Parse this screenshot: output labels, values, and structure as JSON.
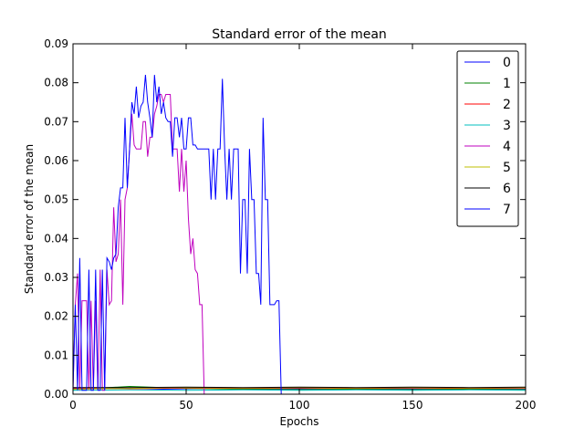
{
  "chart_data": {
    "type": "line",
    "title": "Standard error of the mean",
    "xlabel": "Epochs",
    "ylabel": "Standard error of the mean",
    "xlim": [
      0,
      200
    ],
    "ylim": [
      0,
      0.09
    ],
    "xticks": [
      "0",
      "50",
      "100",
      "150",
      "200"
    ],
    "yticks": [
      "0.00",
      "0.01",
      "0.02",
      "0.03",
      "0.04",
      "0.05",
      "0.06",
      "0.07",
      "0.08",
      "0.09"
    ],
    "grid": false,
    "legend_position": "top-right",
    "series": [
      {
        "name": "0",
        "color": "#0000ff",
        "points": [
          [
            0,
            0.0014
          ],
          [
            20,
            0.0016
          ],
          [
            40,
            0.0013
          ],
          [
            60,
            0.0015
          ],
          [
            80,
            0.0013
          ],
          [
            100,
            0.0014
          ],
          [
            120,
            0.0012
          ],
          [
            140,
            0.0014
          ],
          [
            160,
            0.0013
          ],
          [
            180,
            0.0014
          ],
          [
            200,
            0.0013
          ]
        ]
      },
      {
        "name": "1",
        "color": "#008000",
        "points": [
          [
            0,
            0.0012
          ],
          [
            25,
            0.002
          ],
          [
            50,
            0.0015
          ],
          [
            75,
            0.0013
          ],
          [
            100,
            0.0012
          ],
          [
            125,
            0.0013
          ],
          [
            150,
            0.0012
          ],
          [
            175,
            0.0013
          ],
          [
            200,
            0.0012
          ]
        ]
      },
      {
        "name": "2",
        "color": "#ff0000",
        "points": [
          [
            0,
            0.0016
          ],
          [
            25,
            0.0014
          ],
          [
            50,
            0.0016
          ],
          [
            75,
            0.0015
          ],
          [
            100,
            0.0016
          ],
          [
            125,
            0.0015
          ],
          [
            150,
            0.0016
          ],
          [
            175,
            0.0015
          ],
          [
            200,
            0.0016
          ]
        ]
      },
      {
        "name": "3",
        "color": "#00bfbf",
        "points": [
          [
            0,
            0.001
          ],
          [
            25,
            0.0011
          ],
          [
            50,
            0.001
          ],
          [
            75,
            0.0011
          ],
          [
            100,
            0.001
          ],
          [
            125,
            0.0011
          ],
          [
            150,
            0.001
          ],
          [
            175,
            0.0011
          ],
          [
            200,
            0.001
          ]
        ]
      },
      {
        "name": "4",
        "color": "#bf00bf",
        "points": [
          [
            0,
            0.001
          ],
          [
            1,
            0.023
          ],
          [
            2,
            0.031
          ],
          [
            3,
            0.001
          ],
          [
            4,
            0.024
          ],
          [
            6,
            0.024
          ],
          [
            7,
            0.001
          ],
          [
            8,
            0.024
          ],
          [
            9,
            0.001
          ],
          [
            10,
            0.024
          ],
          [
            11,
            0.001
          ],
          [
            12,
            0.032
          ],
          [
            13,
            0.001
          ],
          [
            14,
            0.001
          ],
          [
            15,
            0.032
          ],
          [
            16,
            0.023
          ],
          [
            17,
            0.024
          ],
          [
            18,
            0.048
          ],
          [
            19,
            0.034
          ],
          [
            20,
            0.036
          ],
          [
            21,
            0.05
          ],
          [
            22,
            0.023
          ],
          [
            23,
            0.05
          ],
          [
            24,
            0.053
          ],
          [
            25,
            0.063
          ],
          [
            26,
            0.072
          ],
          [
            27,
            0.064
          ],
          [
            28,
            0.063
          ],
          [
            30,
            0.063
          ],
          [
            31,
            0.07
          ],
          [
            32,
            0.07
          ],
          [
            33,
            0.061
          ],
          [
            34,
            0.066
          ],
          [
            35,
            0.066
          ],
          [
            36,
            0.072
          ],
          [
            37,
            0.074
          ],
          [
            38,
            0.077
          ],
          [
            39,
            0.077
          ],
          [
            40,
            0.075
          ],
          [
            41,
            0.077
          ],
          [
            43,
            0.077
          ],
          [
            44,
            0.063
          ],
          [
            45,
            0.063
          ],
          [
            46,
            0.063
          ],
          [
            47,
            0.052
          ],
          [
            48,
            0.063
          ],
          [
            49,
            0.052
          ],
          [
            50,
            0.06
          ],
          [
            51,
            0.045
          ],
          [
            52,
            0.036
          ],
          [
            53,
            0.04
          ],
          [
            54,
            0.032
          ],
          [
            55,
            0.031
          ],
          [
            56,
            0.023
          ],
          [
            57,
            0.023
          ],
          [
            58,
            0.0
          ]
        ]
      },
      {
        "name": "5",
        "color": "#bfbf00",
        "points": [
          [
            0,
            0.0013
          ],
          [
            25,
            0.0015
          ],
          [
            50,
            0.0017
          ],
          [
            75,
            0.0016
          ],
          [
            100,
            0.0017
          ],
          [
            125,
            0.0016
          ],
          [
            150,
            0.0017
          ],
          [
            175,
            0.0016
          ],
          [
            200,
            0.0017
          ]
        ]
      },
      {
        "name": "6",
        "color": "#000000",
        "points": [
          [
            0,
            0.0017
          ],
          [
            25,
            0.0017
          ],
          [
            50,
            0.0018
          ],
          [
            75,
            0.0017
          ],
          [
            100,
            0.0018
          ],
          [
            125,
            0.0017
          ],
          [
            150,
            0.0018
          ],
          [
            175,
            0.0017
          ],
          [
            200,
            0.0018
          ]
        ]
      },
      {
        "name": "7",
        "color": "#0000ff",
        "points": [
          [
            0,
            0.001
          ],
          [
            1,
            0.023
          ],
          [
            2,
            0.001
          ],
          [
            3,
            0.035
          ],
          [
            4,
            0.001
          ],
          [
            6,
            0.001
          ],
          [
            7,
            0.032
          ],
          [
            8,
            0.001
          ],
          [
            9,
            0.001
          ],
          [
            10,
            0.032
          ],
          [
            11,
            0.001
          ],
          [
            12,
            0.001
          ],
          [
            13,
            0.032
          ],
          [
            14,
            0.001
          ],
          [
            15,
            0.035
          ],
          [
            16,
            0.034
          ],
          [
            17,
            0.032
          ],
          [
            18,
            0.035
          ],
          [
            19,
            0.036
          ],
          [
            20,
            0.048
          ],
          [
            21,
            0.053
          ],
          [
            22,
            0.053
          ],
          [
            23,
            0.071
          ],
          [
            24,
            0.053
          ],
          [
            25,
            0.063
          ],
          [
            26,
            0.075
          ],
          [
            27,
            0.072
          ],
          [
            28,
            0.079
          ],
          [
            29,
            0.071
          ],
          [
            30,
            0.074
          ],
          [
            31,
            0.075
          ],
          [
            32,
            0.082
          ],
          [
            33,
            0.075
          ],
          [
            34,
            0.071
          ],
          [
            35,
            0.066
          ],
          [
            36,
            0.082
          ],
          [
            37,
            0.075
          ],
          [
            38,
            0.079
          ],
          [
            39,
            0.072
          ],
          [
            40,
            0.075
          ],
          [
            41,
            0.071
          ],
          [
            42,
            0.07
          ],
          [
            43,
            0.07
          ],
          [
            44,
            0.061
          ],
          [
            45,
            0.071
          ],
          [
            46,
            0.071
          ],
          [
            47,
            0.066
          ],
          [
            48,
            0.071
          ],
          [
            49,
            0.063
          ],
          [
            50,
            0.063
          ],
          [
            51,
            0.071
          ],
          [
            52,
            0.071
          ],
          [
            53,
            0.064
          ],
          [
            54,
            0.064
          ],
          [
            55,
            0.063
          ],
          [
            56,
            0.063
          ],
          [
            57,
            0.063
          ],
          [
            58,
            0.063
          ],
          [
            59,
            0.063
          ],
          [
            60,
            0.063
          ],
          [
            61,
            0.05
          ],
          [
            62,
            0.063
          ],
          [
            63,
            0.05
          ],
          [
            64,
            0.063
          ],
          [
            65,
            0.063
          ],
          [
            66,
            0.081
          ],
          [
            67,
            0.063
          ],
          [
            68,
            0.05
          ],
          [
            69,
            0.063
          ],
          [
            70,
            0.05
          ],
          [
            71,
            0.063
          ],
          [
            72,
            0.063
          ],
          [
            73,
            0.063
          ],
          [
            74,
            0.031
          ],
          [
            75,
            0.05
          ],
          [
            76,
            0.05
          ],
          [
            77,
            0.031
          ],
          [
            78,
            0.063
          ],
          [
            79,
            0.05
          ],
          [
            80,
            0.05
          ],
          [
            81,
            0.031
          ],
          [
            82,
            0.031
          ],
          [
            83,
            0.023
          ],
          [
            84,
            0.071
          ],
          [
            85,
            0.05
          ],
          [
            86,
            0.05
          ],
          [
            87,
            0.023
          ],
          [
            88,
            0.023
          ],
          [
            89,
            0.023
          ],
          [
            90,
            0.024
          ],
          [
            91,
            0.024
          ],
          [
            92,
            0.0
          ]
        ]
      }
    ]
  }
}
